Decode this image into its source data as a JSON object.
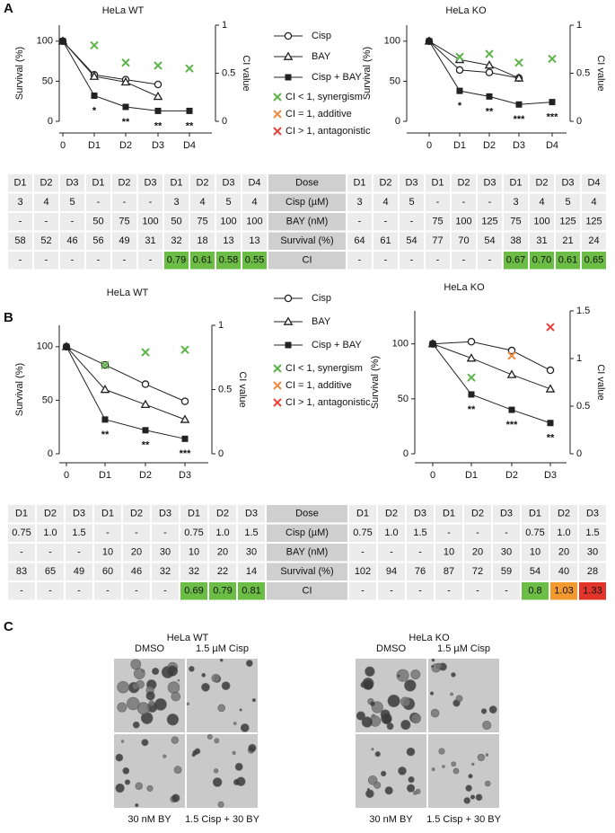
{
  "panel_labels": [
    "A",
    "B",
    "C"
  ],
  "chart_data": [
    {
      "type": "line",
      "title": "HeLa WT",
      "ylabel": "Survival (%)",
      "y2label": "CI value",
      "categories": [
        "0",
        "D1",
        "D2",
        "D3",
        "D4"
      ],
      "ylim": [
        0,
        120
      ],
      "yticks": [
        0,
        50,
        100
      ],
      "y2lim": [
        0,
        1
      ],
      "y2ticks": [
        0,
        0.5,
        1
      ],
      "series": [
        {
          "name": "Cisp",
          "color": "#222222",
          "marker": "circle",
          "values": [
            100,
            58,
            52,
            46,
            null
          ]
        },
        {
          "name": "BAY",
          "color": "#222222",
          "marker": "triangle",
          "values": [
            100,
            56,
            49,
            31,
            null
          ]
        },
        {
          "name": "Cisp + BAY",
          "color": "#222222",
          "marker": "square",
          "values": [
            100,
            32,
            18,
            13,
            13
          ]
        }
      ],
      "ci": {
        "axis": "y2",
        "values": [
          null,
          0.79,
          0.61,
          0.58,
          0.55
        ],
        "colors": [
          null,
          "#5bb446",
          "#5bb446",
          "#5bb446",
          "#5bb446"
        ]
      },
      "ci_legend": [
        {
          "label": "CI < 1, synergism",
          "color": "#5bb446"
        },
        {
          "label": "CI = 1, additive",
          "color": "#f08a3c"
        },
        {
          "label": "CI > 1, antagonistic",
          "color": "#e8413a"
        }
      ],
      "significance": [
        null,
        "*",
        "**",
        "**",
        "**"
      ]
    },
    {
      "type": "line",
      "title": "HeLa KO",
      "ylabel": "Survival (%)",
      "y2label": "CI value",
      "categories": [
        "0",
        "D1",
        "D2",
        "D3",
        "D4"
      ],
      "ylim": [
        0,
        120
      ],
      "yticks": [
        0,
        50,
        100
      ],
      "y2lim": [
        0,
        1
      ],
      "y2ticks": [
        0,
        0.5,
        1
      ],
      "series": [
        {
          "color": "#222222",
          "marker": "circle",
          "values": [
            100,
            64,
            61,
            54,
            null
          ]
        },
        {
          "color": "#222222",
          "marker": "triangle",
          "values": [
            100,
            77,
            70,
            54,
            null
          ]
        },
        {
          "color": "#222222",
          "marker": "square",
          "values": [
            100,
            38,
            31,
            21,
            24
          ]
        }
      ],
      "ci": {
        "axis": "y2",
        "values": [
          null,
          0.67,
          0.7,
          0.61,
          0.65
        ],
        "colors": [
          null,
          "#5bb446",
          "#5bb446",
          "#5bb446",
          "#5bb446"
        ]
      },
      "significance": [
        null,
        "*",
        "**",
        "***",
        "***"
      ]
    },
    {
      "type": "line",
      "title": "HeLa WT",
      "ylabel": "Survival (%)",
      "y2label": "CI value",
      "categories": [
        "0",
        "D1",
        "D2",
        "D3"
      ],
      "ylim": [
        0,
        120
      ],
      "yticks": [
        0,
        50,
        100
      ],
      "y2lim": [
        0,
        1
      ],
      "y2ticks": [
        0,
        0.5,
        1
      ],
      "series": [
        {
          "name": "Cisp",
          "color": "#222222",
          "marker": "circle",
          "values": [
            100,
            83,
            65,
            49
          ]
        },
        {
          "name": "BAY",
          "color": "#222222",
          "marker": "triangle",
          "values": [
            100,
            60,
            46,
            32
          ]
        },
        {
          "name": "Cisp + BAY",
          "color": "#222222",
          "marker": "square",
          "values": [
            100,
            32,
            22,
            14
          ]
        }
      ],
      "ci": {
        "axis": "y2",
        "values": [
          null,
          0.69,
          0.79,
          0.81
        ],
        "colors": [
          null,
          "#5bb446",
          "#5bb446",
          "#5bb446"
        ]
      },
      "ci_legend": [
        {
          "label": "CI < 1, synergism",
          "color": "#5bb446"
        },
        {
          "label": "CI = 1, additive",
          "color": "#f08a3c"
        },
        {
          "label": "CI > 1, antagonistic",
          "color": "#e8413a"
        }
      ],
      "significance": [
        null,
        "**",
        "**",
        "***"
      ]
    },
    {
      "type": "line",
      "title": "HeLa KO",
      "ylabel": "Survival (%)",
      "y2label": "CI value",
      "categories": [
        "0",
        "D1",
        "D2",
        "D3"
      ],
      "ylim": [
        0,
        130
      ],
      "yticks": [
        0,
        50,
        100
      ],
      "y2lim": [
        0,
        1.5
      ],
      "y2ticks": [
        0,
        0.5,
        1,
        1.5
      ],
      "series": [
        {
          "color": "#222222",
          "marker": "circle",
          "values": [
            100,
            102,
            94,
            76
          ]
        },
        {
          "color": "#222222",
          "marker": "triangle",
          "values": [
            100,
            87,
            72,
            59
          ]
        },
        {
          "color": "#222222",
          "marker": "square",
          "values": [
            100,
            54,
            40,
            28
          ]
        }
      ],
      "ci": {
        "axis": "y2",
        "values": [
          null,
          0.8,
          1.03,
          1.33
        ],
        "colors": [
          null,
          "#5bb446",
          "#f08a3c",
          "#e8413a"
        ]
      },
      "significance": [
        null,
        "**",
        "***",
        "**"
      ]
    }
  ],
  "tables": [
    {
      "rows": [
        [
          "D1",
          "D2",
          "D3",
          "D1",
          "D2",
          "D3",
          "D1",
          "D2",
          "D3",
          "D4",
          "Dose",
          "D1",
          "D2",
          "D3",
          "D1",
          "D2",
          "D3",
          "D1",
          "D2",
          "D3",
          "D4"
        ],
        [
          "3",
          "4",
          "5",
          "-",
          "-",
          "-",
          "3",
          "4",
          "5",
          "4",
          "Cisp (µM)",
          "3",
          "4",
          "5",
          "-",
          "-",
          "-",
          "3",
          "4",
          "5",
          "4"
        ],
        [
          "-",
          "-",
          "-",
          "50",
          "75",
          "100",
          "50",
          "75",
          "100",
          "100",
          "BAY (nM)",
          "-",
          "-",
          "-",
          "75",
          "100",
          "125",
          "75",
          "100",
          "125",
          "125"
        ],
        [
          "58",
          "52",
          "46",
          "56",
          "49",
          "31",
          "32",
          "18",
          "13",
          "13",
          "Survival (%)",
          "64",
          "61",
          "54",
          "77",
          "70",
          "54",
          "38",
          "31",
          "21",
          "24"
        ],
        [
          "-",
          "-",
          "-",
          "-",
          "-",
          "-",
          "0.79",
          "0.61",
          "0.58",
          "0.55",
          "CI",
          "-",
          "-",
          "-",
          "-",
          "-",
          "-",
          "0.67",
          "0.70",
          "0.61",
          "0.65"
        ]
      ],
      "ci_colors": [
        null,
        null,
        null,
        null,
        null,
        null,
        "#6cbd45",
        "#6cbd45",
        "#6cbd45",
        "#6cbd45",
        null,
        null,
        null,
        null,
        null,
        null,
        null,
        "#6cbd45",
        "#6cbd45",
        "#6cbd45",
        "#6cbd45"
      ]
    },
    {
      "rows": [
        [
          "D1",
          "D2",
          "D3",
          "D1",
          "D2",
          "D3",
          "D1",
          "D2",
          "D3",
          "Dose",
          "D1",
          "D2",
          "D3",
          "D1",
          "D2",
          "D3",
          "D1",
          "D2",
          "D3"
        ],
        [
          "0.75",
          "1.0",
          "1.5",
          "-",
          "-",
          "-",
          "0.75",
          "1.0",
          "1.5",
          "Cisp (µM)",
          "0.75",
          "1.0",
          "1.5",
          "-",
          "-",
          "-",
          "0.75",
          "1.0",
          "1.5"
        ],
        [
          "-",
          "-",
          "-",
          "10",
          "20",
          "30",
          "10",
          "20",
          "30",
          "BAY (nM)",
          "-",
          "-",
          "-",
          "10",
          "20",
          "30",
          "10",
          "20",
          "30"
        ],
        [
          "83",
          "65",
          "49",
          "60",
          "46",
          "32",
          "32",
          "22",
          "14",
          "Survival (%)",
          "102",
          "94",
          "76",
          "87",
          "72",
          "59",
          "54",
          "40",
          "28"
        ],
        [
          "-",
          "-",
          "-",
          "-",
          "-",
          "-",
          "0.69",
          "0.79",
          "0.81",
          "CI",
          "-",
          "-",
          "-",
          "-",
          "-",
          "-",
          "0.8",
          "1.03",
          "1.33"
        ]
      ],
      "ci_colors": [
        null,
        null,
        null,
        null,
        null,
        null,
        "#6cbd45",
        "#6cbd45",
        "#6cbd45",
        null,
        null,
        null,
        null,
        null,
        null,
        null,
        "#6cbd45",
        "#f39a2f",
        "#e3342a"
      ]
    }
  ],
  "panel_c": [
    {
      "title": "HeLa WT",
      "top": [
        "DMSO",
        "1.5 µM Cisp"
      ],
      "bottom": [
        "30 nM BY",
        "1.5 Cisp + 30 BY"
      ]
    },
    {
      "title": "HeLa KO",
      "top": [
        "DMSO",
        "1.5 µM Cisp"
      ],
      "bottom": [
        "30 nM BY",
        "1.5 Cisp + 30 BY"
      ]
    }
  ]
}
